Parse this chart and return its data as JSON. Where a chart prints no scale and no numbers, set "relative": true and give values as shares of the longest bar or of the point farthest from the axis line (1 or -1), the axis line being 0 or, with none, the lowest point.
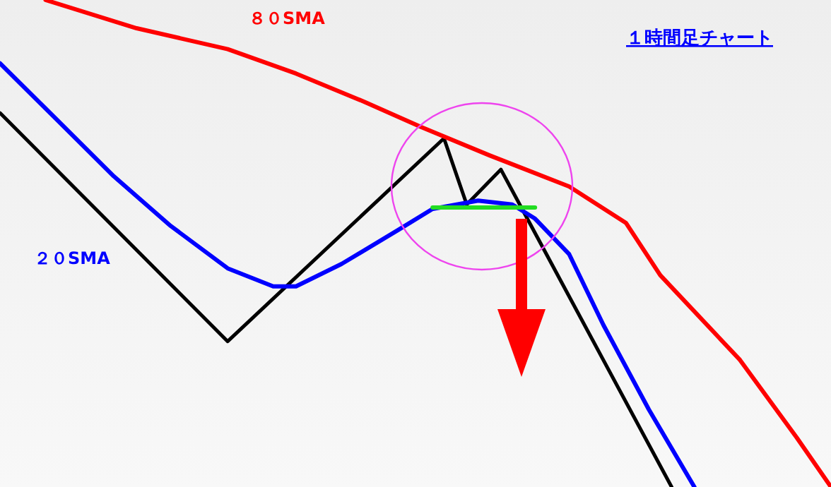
{
  "chart_data": {
    "type": "line",
    "title": "１時間足チャート",
    "relative": true,
    "categories": [
      null,
      null,
      null,
      null,
      null,
      null,
      null,
      null,
      null,
      null,
      null,
      null,
      null,
      null,
      null,
      null,
      null,
      null,
      null,
      null,
      null,
      null,
      null,
      null,
      null,
      null,
      null,
      null,
      null,
      null,
      null,
      null,
      null,
      null,
      null,
      null,
      null,
      null,
      null,
      null,
      null,
      null,
      null,
      null,
      null,
      null,
      null,
      null,
      null,
      null,
      null,
      null,
      null,
      null,
      null,
      null,
      null,
      null,
      null,
      null,
      null,
      null,
      null,
      null,
      null,
      null,
      null,
      null,
      null,
      null,
      null,
      null,
      null,
      null
    ],
    "series": [
      {
        "color": "#000000",
        "values": [
          0.768,
          null,
          null,
          null,
          null,
          null,
          null,
          null,
          null,
          null,
          null,
          null,
          null,
          null,
          null,
          null,
          null,
          null,
          null,
          null,
          0.299,
          null,
          null,
          null,
          null,
          null,
          null,
          null,
          null,
          null,
          null,
          null,
          null,
          null,
          null,
          null,
          null,
          null,
          null,
          0.716,
          null,
          0.58,
          null,
          null,
          0.652,
          null,
          null,
          null,
          null,
          null,
          null,
          null,
          null,
          null,
          null,
          null,
          null,
          null,
          null,
          0.0,
          null,
          null,
          null,
          null,
          null,
          null,
          null,
          null,
          null,
          null,
          null,
          null,
          null,
          null
        ]
      },
      {
        "name": "２０SMA",
        "color": "#0000ff",
        "values": [
          0.87,
          null,
          null,
          null,
          null,
          0.754,
          null,
          null,
          null,
          null,
          0.638,
          null,
          null,
          null,
          null,
          0.536,
          null,
          null,
          null,
          null,
          0.449,
          null,
          null,
          null,
          0.412,
          null,
          0.412,
          null,
          null,
          null,
          0.458,
          null,
          null,
          null,
          null,
          0.528,
          null,
          null,
          0.571,
          null,
          null,
          null,
          0.588,
          null,
          null,
          0.58,
          null,
          0.551,
          null,
          null,
          0.478,
          null,
          null,
          0.333,
          null,
          null,
          null,
          0.159,
          null,
          null,
          null,
          0.0,
          null,
          null,
          null,
          null,
          null,
          null,
          null,
          null,
          null,
          null,
          null,
          null
        ]
      },
      {
        "name": "８０SMA",
        "color": "#ff0000",
        "values": [
          null,
          null,
          null,
          null,
          1.0,
          null,
          null,
          null,
          null,
          null,
          null,
          null,
          0.942,
          null,
          null,
          null,
          null,
          null,
          null,
          null,
          0.899,
          null,
          null,
          null,
          null,
          null,
          0.849,
          null,
          null,
          null,
          null,
          null,
          0.791,
          null,
          null,
          null,
          null,
          0.739,
          null,
          null,
          null,
          null,
          null,
          0.681,
          null,
          null,
          null,
          null,
          null,
          null,
          0.617,
          null,
          null,
          null,
          null,
          0.542,
          null,
          null,
          0.435,
          null,
          null,
          null,
          null,
          null,
          null,
          0.261,
          null,
          null,
          null,
          null,
          0.101,
          null,
          null,
          0.0
        ]
      },
      {
        "color": "#22dd22",
        "values": [
          null,
          null,
          null,
          null,
          null,
          null,
          null,
          null,
          null,
          null,
          null,
          null,
          null,
          null,
          null,
          null,
          null,
          null,
          null,
          null,
          null,
          null,
          null,
          null,
          null,
          null,
          null,
          null,
          null,
          null,
          null,
          null,
          null,
          null,
          null,
          null,
          null,
          null,
          0.574,
          null,
          null,
          null,
          null,
          null,
          null,
          null,
          null,
          0.574,
          null,
          null,
          null,
          null,
          null,
          null,
          null,
          null,
          null,
          null,
          null,
          null,
          null,
          null,
          null,
          null,
          null,
          null,
          null,
          null,
          null,
          null,
          null,
          null,
          null,
          null
        ]
      }
    ]
  }
}
